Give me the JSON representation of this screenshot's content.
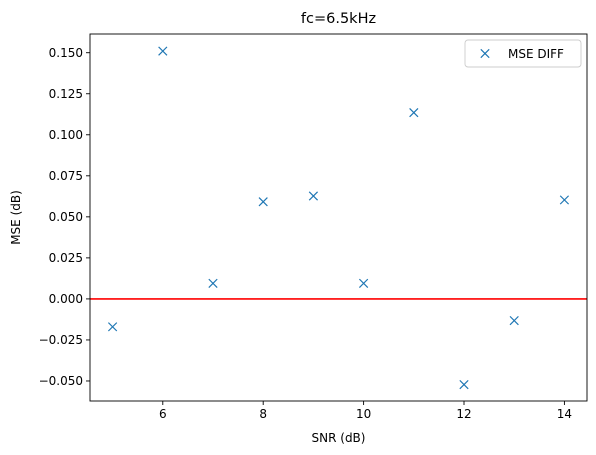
{
  "chart_data": {
    "type": "scatter",
    "title": "fc=6.5kHz",
    "xlabel": "SNR (dB)",
    "ylabel": "MSE (dB)",
    "xlim": [
      4.55,
      14.45
    ],
    "ylim": [
      -0.0622,
      0.1614
    ],
    "xticks": [
      6,
      8,
      10,
      12,
      14
    ],
    "xtick_labels": [
      "6",
      "8",
      "10",
      "12",
      "14"
    ],
    "yticks": [
      -0.05,
      -0.025,
      0.0,
      0.025,
      0.05,
      0.075,
      0.1,
      0.125,
      0.15
    ],
    "ytick_labels": [
      "−0.050",
      "−0.025",
      "0.000",
      "0.025",
      "0.050",
      "0.075",
      "0.100",
      "0.125",
      "0.150"
    ],
    "grid": false,
    "legend_position": "top-right",
    "series": [
      {
        "name": "MSE DIFF",
        "marker": "x",
        "color": "#1f77b4",
        "x": [
          5,
          6,
          7,
          8,
          9,
          10,
          11,
          12,
          13,
          14
        ],
        "y": [
          -0.017,
          0.151,
          0.0095,
          0.0592,
          0.0627,
          0.0095,
          0.1135,
          -0.0522,
          -0.0132,
          0.0603
        ]
      }
    ],
    "hline": {
      "y": 0.0,
      "color": "#ff0000"
    }
  }
}
